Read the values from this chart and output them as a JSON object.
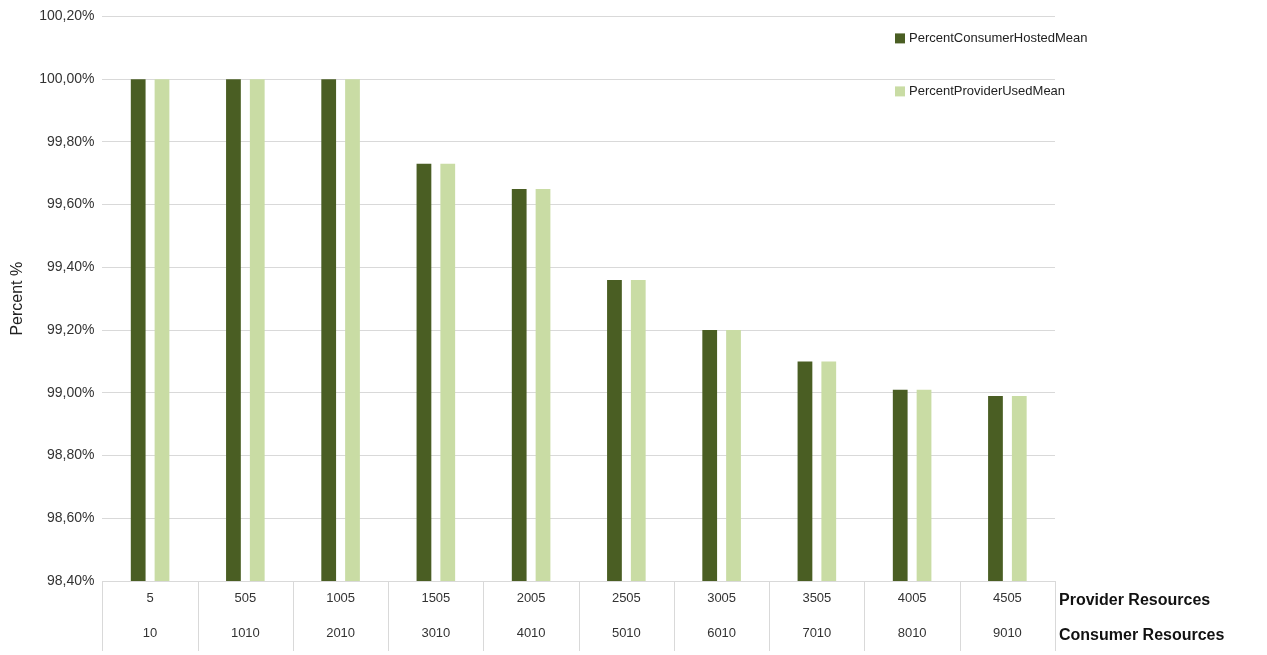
{
  "chart_data": {
    "type": "bar",
    "ylabel": "Percent %",
    "xlabel": "Provider Resources\nConsumer Resources",
    "categories": [
      "5\n10",
      "505\n1010",
      "1005\n2010",
      "1505\n3010",
      "2005\n4010",
      "2505\n5010",
      "3005\n6010",
      "3505\n7010",
      "4005\n8010",
      "4505\n9010"
    ],
    "series": [
      {
        "name": "PercentConsumerHostedMean",
        "color": "#4a5e23",
        "values": [
          100.0,
          100.0,
          100.0,
          99.73,
          99.65,
          99.36,
          99.2,
          99.1,
          99.01,
          98.99
        ]
      },
      {
        "name": "PercentProviderUsedMean",
        "color": "#c9dca4",
        "values": [
          100.0,
          100.0,
          100.0,
          99.73,
          99.65,
          99.36,
          99.2,
          99.1,
          99.01,
          98.99
        ]
      }
    ],
    "ylim": [
      98.4,
      100.2
    ],
    "yticks": [
      {
        "value": 98.4,
        "label": "98,40%"
      },
      {
        "value": 98.6,
        "label": "98,60%"
      },
      {
        "value": 98.8,
        "label": "98,80%"
      },
      {
        "value": 99.0,
        "label": "99,00%"
      },
      {
        "value": 99.2,
        "label": "99,20%"
      },
      {
        "value": 99.4,
        "label": "99,40%"
      },
      {
        "value": 99.6,
        "label": "99,60%"
      },
      {
        "value": 99.8,
        "label": "99,80%"
      },
      {
        "value": 100.0,
        "label": "100,00%"
      },
      {
        "value": 100.2,
        "label": "100,20%"
      }
    ],
    "grid": "y",
    "legend": "top right"
  }
}
